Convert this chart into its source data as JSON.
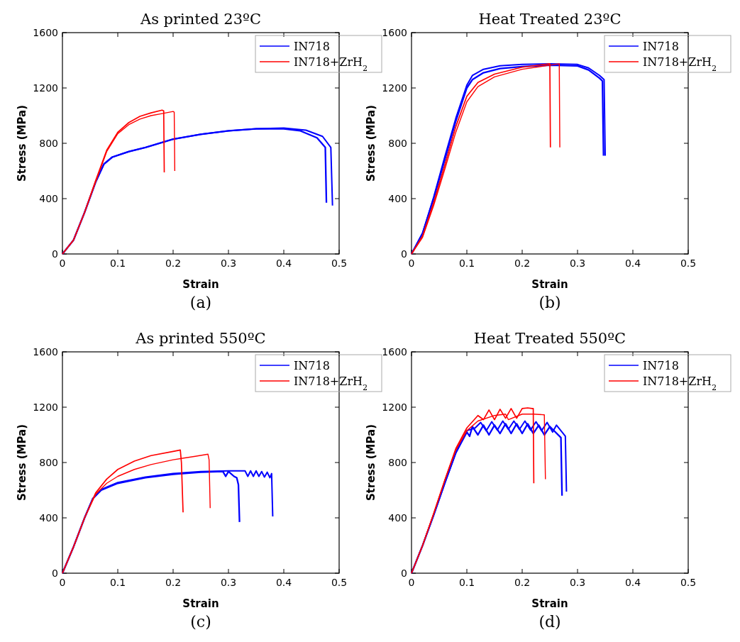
{
  "chart_data": [
    {
      "type": "line",
      "title": "As printed 23ºC",
      "xlabel": "Strain",
      "ylabel": "Stress (MPa)",
      "annotations": [
        "(a)"
      ],
      "xlim": [
        0,
        0.5
      ],
      "ylim": [
        0,
        1600
      ],
      "xticks": [
        0,
        0.1,
        0.2,
        0.3,
        0.4,
        0.5
      ],
      "yticks": [
        0,
        400,
        800,
        1200,
        1600
      ],
      "legend": "top right",
      "series": [
        {
          "name": "IN718",
          "color": "#0000ff",
          "x": [
            0,
            0.02,
            0.04,
            0.06,
            0.075,
            0.09,
            0.12,
            0.15,
            0.2,
            0.25,
            0.3,
            0.35,
            0.4,
            0.43,
            0.46,
            0.475,
            0.477
          ],
          "values": [
            0,
            100,
            300,
            520,
            650,
            700,
            740,
            770,
            830,
            865,
            890,
            905,
            905,
            890,
            840,
            770,
            370
          ]
        },
        {
          "color": "#0000ff",
          "x": [
            0,
            0.02,
            0.04,
            0.06,
            0.075,
            0.09,
            0.12,
            0.15,
            0.2,
            0.25,
            0.3,
            0.35,
            0.4,
            0.44,
            0.47,
            0.485,
            0.488
          ],
          "values": [
            0,
            100,
            300,
            520,
            650,
            700,
            740,
            770,
            830,
            865,
            890,
            905,
            910,
            895,
            850,
            770,
            350
          ]
        },
        {
          "name": "IN718+ZrH$_{2}$",
          "color": "#ff0000",
          "x": [
            0,
            0.02,
            0.04,
            0.06,
            0.08,
            0.1,
            0.12,
            0.14,
            0.16,
            0.18,
            0.183,
            0.184
          ],
          "values": [
            0,
            100,
            300,
            530,
            750,
            880,
            950,
            995,
            1020,
            1040,
            1035,
            590
          ]
        },
        {
          "color": "#ff0000",
          "x": [
            0,
            0.02,
            0.04,
            0.06,
            0.08,
            0.1,
            0.12,
            0.14,
            0.16,
            0.18,
            0.2,
            0.202,
            0.203
          ],
          "values": [
            0,
            100,
            300,
            520,
            740,
            870,
            935,
            975,
            1000,
            1015,
            1030,
            1025,
            600
          ]
        }
      ]
    },
    {
      "type": "line",
      "title": "Heat Treated 23ºC",
      "xlabel": "Strain",
      "ylabel": "Stress (MPa)",
      "annotations": [
        "(b)"
      ],
      "xlim": [
        0,
        0.5
      ],
      "ylim": [
        0,
        1600
      ],
      "xticks": [
        0,
        0.1,
        0.2,
        0.3,
        0.4,
        0.5
      ],
      "yticks": [
        0,
        400,
        800,
        1200,
        1600
      ],
      "legend": "top right",
      "series": [
        {
          "name": "IN718",
          "color": "#0000ff",
          "x": [
            0,
            0.02,
            0.04,
            0.06,
            0.08,
            0.1,
            0.11,
            0.13,
            0.16,
            0.2,
            0.25,
            0.3,
            0.32,
            0.34,
            0.345,
            0.347
          ],
          "values": [
            0,
            150,
            400,
            680,
            960,
            1200,
            1260,
            1310,
            1340,
            1355,
            1365,
            1360,
            1330,
            1270,
            1250,
            710
          ]
        },
        {
          "color": "#0000ff",
          "x": [
            0,
            0.02,
            0.04,
            0.06,
            0.08,
            0.1,
            0.11,
            0.13,
            0.16,
            0.2,
            0.25,
            0.3,
            0.32,
            0.34,
            0.348,
            0.35
          ],
          "values": [
            0,
            150,
            410,
            700,
            980,
            1220,
            1290,
            1335,
            1360,
            1370,
            1375,
            1370,
            1345,
            1290,
            1260,
            710
          ]
        },
        {
          "name": "IN718+ZrH$_{2}$",
          "color": "#ff0000",
          "x": [
            0,
            0.02,
            0.04,
            0.06,
            0.08,
            0.1,
            0.12,
            0.15,
            0.2,
            0.25,
            0.251
          ],
          "values": [
            0,
            130,
            370,
            640,
            920,
            1140,
            1240,
            1300,
            1350,
            1375,
            770
          ]
        },
        {
          "color": "#ff0000",
          "x": [
            0,
            0.02,
            0.04,
            0.06,
            0.08,
            0.1,
            0.12,
            0.15,
            0.2,
            0.25,
            0.267,
            0.268
          ],
          "values": [
            0,
            120,
            350,
            610,
            880,
            1100,
            1210,
            1280,
            1335,
            1365,
            1375,
            770
          ]
        }
      ]
    },
    {
      "type": "line",
      "title": "As printed 550ºC",
      "xlabel": "Strain",
      "ylabel": "Stress (MPa)",
      "annotations": [
        "(c)"
      ],
      "xlim": [
        0,
        0.5
      ],
      "ylim": [
        0,
        1600
      ],
      "xticks": [
        0,
        0.1,
        0.2,
        0.3,
        0.4,
        0.5
      ],
      "yticks": [
        0,
        400,
        800,
        1200,
        1600
      ],
      "legend": "top right",
      "series": [
        {
          "name": "IN718",
          "color": "#0000ff",
          "x": [
            0,
            0.02,
            0.04,
            0.055,
            0.07,
            0.1,
            0.15,
            0.2,
            0.25,
            0.29,
            0.295,
            0.3,
            0.31,
            0.315,
            0.318,
            0.32
          ],
          "values": [
            0,
            190,
            400,
            540,
            600,
            650,
            690,
            715,
            730,
            735,
            700,
            735,
            700,
            690,
            640,
            370
          ]
        },
        {
          "color": "#0000ff",
          "x": [
            0,
            0.02,
            0.04,
            0.055,
            0.07,
            0.1,
            0.15,
            0.2,
            0.25,
            0.3,
            0.33,
            0.335,
            0.34,
            0.345,
            0.35,
            0.355,
            0.36,
            0.365,
            0.37,
            0.375,
            0.378,
            0.38
          ],
          "values": [
            0,
            190,
            400,
            540,
            605,
            655,
            695,
            720,
            735,
            740,
            740,
            700,
            740,
            700,
            740,
            700,
            735,
            695,
            730,
            690,
            720,
            410
          ]
        },
        {
          "name": "IN718+ZrH$_{2}$",
          "color": "#ff0000",
          "x": [
            0,
            0.02,
            0.04,
            0.06,
            0.08,
            0.1,
            0.13,
            0.16,
            0.2,
            0.213,
            0.215,
            0.218
          ],
          "values": [
            0,
            190,
            400,
            580,
            680,
            750,
            810,
            850,
            880,
            890,
            800,
            440
          ]
        },
        {
          "color": "#ff0000",
          "x": [
            0,
            0.02,
            0.04,
            0.06,
            0.08,
            0.1,
            0.13,
            0.16,
            0.2,
            0.24,
            0.263,
            0.265,
            0.267
          ],
          "values": [
            0,
            190,
            400,
            570,
            650,
            700,
            750,
            785,
            820,
            845,
            860,
            820,
            470
          ]
        }
      ]
    },
    {
      "type": "line",
      "title": "Heat Treated 550ºC",
      "xlabel": "Strain",
      "ylabel": "Stress (MPa)",
      "annotations": [
        "(d)"
      ],
      "xlim": [
        0,
        0.5
      ],
      "ylim": [
        0,
        1600
      ],
      "xticks": [
        0,
        0.1,
        0.2,
        0.3,
        0.4,
        0.5
      ],
      "yticks": [
        0,
        400,
        800,
        1200,
        1600
      ],
      "legend": "top right",
      "series": [
        {
          "name": "IN718",
          "color": "#0000ff",
          "x": [
            0,
            0.02,
            0.04,
            0.06,
            0.08,
            0.1,
            0.105,
            0.11,
            0.12,
            0.13,
            0.14,
            0.15,
            0.16,
            0.17,
            0.18,
            0.19,
            0.2,
            0.21,
            0.22,
            0.23,
            0.24,
            0.25,
            0.255,
            0.27,
            0.272
          ],
          "values": [
            0,
            200,
            420,
            650,
            870,
            1020,
            990,
            1060,
            1000,
            1070,
            1000,
            1070,
            1010,
            1080,
            1010,
            1080,
            1010,
            1080,
            1010,
            1070,
            1000,
            1060,
            1040,
            980,
            560
          ]
        },
        {
          "color": "#0000ff",
          "x": [
            0,
            0.02,
            0.04,
            0.06,
            0.08,
            0.1,
            0.115,
            0.125,
            0.135,
            0.145,
            0.155,
            0.165,
            0.175,
            0.185,
            0.195,
            0.205,
            0.215,
            0.225,
            0.235,
            0.245,
            0.255,
            0.262,
            0.278,
            0.28
          ],
          "values": [
            0,
            200,
            420,
            650,
            870,
            1030,
            1050,
            1090,
            1030,
            1095,
            1035,
            1100,
            1040,
            1100,
            1040,
            1100,
            1035,
            1095,
            1030,
            1090,
            1020,
            1070,
            990,
            590
          ]
        },
        {
          "name": "IN718+ZrH$_{2}$",
          "color": "#ff0000",
          "x": [
            0,
            0.02,
            0.04,
            0.06,
            0.08,
            0.1,
            0.12,
            0.13,
            0.14,
            0.15,
            0.16,
            0.17,
            0.18,
            0.19,
            0.2,
            0.21,
            0.218,
            0.22,
            0.221
          ],
          "values": [
            0,
            200,
            430,
            670,
            900,
            1050,
            1140,
            1110,
            1180,
            1110,
            1185,
            1120,
            1190,
            1120,
            1190,
            1195,
            1190,
            1190,
            650
          ]
        },
        {
          "color": "#ff0000",
          "x": [
            0,
            0.02,
            0.04,
            0.06,
            0.08,
            0.1,
            0.12,
            0.15,
            0.17,
            0.175,
            0.2,
            0.22,
            0.24,
            0.242
          ],
          "values": [
            0,
            200,
            430,
            670,
            890,
            1030,
            1100,
            1140,
            1150,
            1110,
            1150,
            1150,
            1145,
            680
          ]
        }
      ]
    }
  ]
}
